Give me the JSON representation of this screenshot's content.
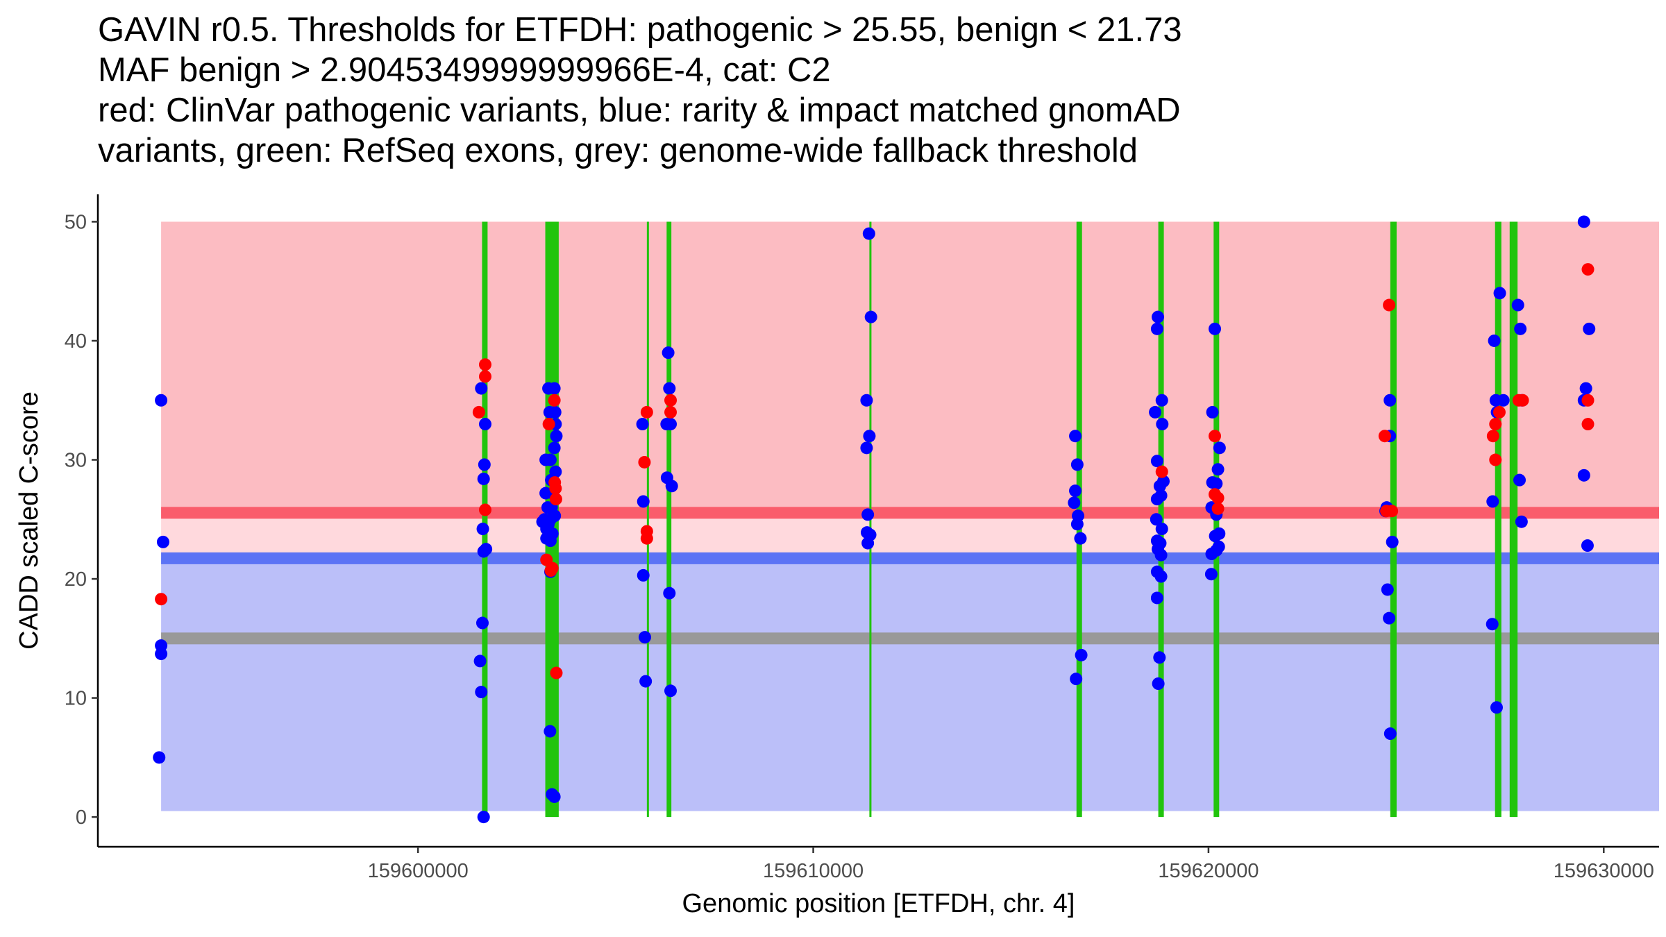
{
  "chart_data": {
    "type": "scatter",
    "title_lines": [
      "GAVIN r0.5. Thresholds for ETFDH: pathogenic > 25.55, benign < 21.73",
      "MAF benign > 2.9045349999999966E-4, cat: C2",
      "red: ClinVar pathogenic variants, blue: rarity & impact matched gnomAD",
      "variants, green: RefSeq exons, grey: genome-wide fallback threshold"
    ],
    "xlabel": "Genomic position [ETFDH, chr. 4]",
    "ylabel": "CADD scaled C-score",
    "xlim": [
      159591900,
      159631400
    ],
    "ylim": [
      -2.5,
      52.3
    ],
    "x_ticks": [
      159600000,
      159610000,
      159620000,
      159630000
    ],
    "x_tick_labels": [
      "159600000",
      "159610000",
      "159620000",
      "159630000"
    ],
    "y_ticks": [
      0,
      10,
      20,
      30,
      40,
      50
    ],
    "y_tick_labels": [
      "0",
      "10",
      "20",
      "30",
      "40",
      "50"
    ],
    "gene_start": 159593500,
    "gene_end": 159631400,
    "thresholds": {
      "pathogenic": 25.55,
      "benign": 21.73,
      "genome_wide_fallback": 15.0
    },
    "regions": [
      {
        "name": "pathogenic region",
        "ymin": 25.55,
        "ymax": 50,
        "color": "#fcbcc2"
      },
      {
        "name": "intermediate region",
        "ymin": 21.73,
        "ymax": 25.55,
        "color": "#ffd9dd"
      },
      {
        "name": "benign region",
        "ymin": 0.5,
        "ymax": 21.73,
        "color": "#bbbff9"
      }
    ],
    "colors": {
      "pathogenic_line": "#fa5c6b",
      "benign_line": "#5c73f5",
      "fallback_line": "#999999",
      "exon": "#21c40d",
      "pathogenic_variant": "#ff0000",
      "gnomad_variant": "#0000ff"
    },
    "exons": [
      {
        "start": 159601620,
        "end": 159601760
      },
      {
        "start": 159603220,
        "end": 159603560
      },
      {
        "start": 159605790,
        "end": 159605840
      },
      {
        "start": 159606290,
        "end": 159606410
      },
      {
        "start": 159611420,
        "end": 159611470
      },
      {
        "start": 159616660,
        "end": 159616800
      },
      {
        "start": 159618730,
        "end": 159618870
      },
      {
        "start": 159620130,
        "end": 159620270
      },
      {
        "start": 159624600,
        "end": 159624760
      },
      {
        "start": 159627250,
        "end": 159627410
      },
      {
        "start": 159627620,
        "end": 159627820
      }
    ],
    "series": [
      {
        "name": "ClinVar pathogenic variants",
        "color": "#ff0000",
        "points": [
          [
            159593500,
            18.3
          ],
          [
            159601540,
            34
          ],
          [
            159601700,
            38
          ],
          [
            159601700,
            37
          ],
          [
            159601700,
            25.8
          ],
          [
            159603250,
            21.6
          ],
          [
            159603310,
            33
          ],
          [
            159603360,
            20.7
          ],
          [
            159603400,
            20.9
          ],
          [
            159603450,
            35
          ],
          [
            159603460,
            28.1
          ],
          [
            159603480,
            27.6
          ],
          [
            159603490,
            26.7
          ],
          [
            159603500,
            12.1
          ],
          [
            159605730,
            29.8
          ],
          [
            159605790,
            34
          ],
          [
            159605790,
            24
          ],
          [
            159605790,
            23.4
          ],
          [
            159606390,
            35
          ],
          [
            159606390,
            34
          ],
          [
            159620160,
            32
          ],
          [
            159620160,
            27.1
          ],
          [
            159620240,
            26.8
          ],
          [
            159620240,
            25.9
          ],
          [
            159618820,
            29
          ],
          [
            159624460,
            32
          ],
          [
            159624500,
            25.7
          ],
          [
            159624570,
            43
          ],
          [
            159624640,
            25.7
          ],
          [
            159627200,
            32
          ],
          [
            159627260,
            30
          ],
          [
            159627260,
            33
          ],
          [
            159627360,
            34
          ],
          [
            159627850,
            35
          ],
          [
            159627950,
            35
          ],
          [
            159629600,
            46
          ],
          [
            159629600,
            35
          ],
          [
            159629600,
            33
          ]
        ]
      },
      {
        "name": "rarity & impact matched gnomAD variants",
        "color": "#0000ff",
        "points": [
          [
            159593500,
            35
          ],
          [
            159593550,
            23.1
          ],
          [
            159593500,
            14.4
          ],
          [
            159593500,
            13.7
          ],
          [
            159593450,
            5
          ],
          [
            159601600,
            36
          ],
          [
            159601700,
            33
          ],
          [
            159601680,
            29.6
          ],
          [
            159601660,
            28.4
          ],
          [
            159601640,
            24.2
          ],
          [
            159601720,
            22.5
          ],
          [
            159601660,
            22.3
          ],
          [
            159601630,
            16.3
          ],
          [
            159601570,
            13.1
          ],
          [
            159601600,
            10.5
          ],
          [
            159601660,
            0
          ],
          [
            159603300,
            36
          ],
          [
            159603450,
            36
          ],
          [
            159603330,
            34
          ],
          [
            159603470,
            34
          ],
          [
            159603480,
            33
          ],
          [
            159603500,
            32
          ],
          [
            159603450,
            31
          ],
          [
            159603230,
            30
          ],
          [
            159603350,
            30
          ],
          [
            159603480,
            29
          ],
          [
            159603370,
            28.3
          ],
          [
            159603230,
            27.2
          ],
          [
            159603400,
            27.2
          ],
          [
            159603280,
            26
          ],
          [
            159603380,
            26
          ],
          [
            159603460,
            25.3
          ],
          [
            159603200,
            25
          ],
          [
            159603350,
            25
          ],
          [
            159603150,
            24.8
          ],
          [
            159603300,
            24.6
          ],
          [
            159603250,
            24.2
          ],
          [
            159603400,
            23.8
          ],
          [
            159603250,
            23.4
          ],
          [
            159603350,
            23.2
          ],
          [
            159603350,
            20.6
          ],
          [
            159603340,
            7.2
          ],
          [
            159603390,
            1.9
          ],
          [
            159603450,
            1.7
          ],
          [
            159605680,
            33
          ],
          [
            159605700,
            26.5
          ],
          [
            159605700,
            20.3
          ],
          [
            159605740,
            15.1
          ],
          [
            159605760,
            11.4
          ],
          [
            159606330,
            39
          ],
          [
            159606360,
            36
          ],
          [
            159606290,
            33
          ],
          [
            159606390,
            33
          ],
          [
            159606300,
            28.5
          ],
          [
            159606420,
            27.8
          ],
          [
            159606360,
            18.8
          ],
          [
            159606390,
            10.6
          ],
          [
            159611410,
            49
          ],
          [
            159611460,
            42
          ],
          [
            159611350,
            35
          ],
          [
            159611420,
            32
          ],
          [
            159611350,
            31
          ],
          [
            159611380,
            25.4
          ],
          [
            159611360,
            23.9
          ],
          [
            159611440,
            23.7
          ],
          [
            159611380,
            23
          ],
          [
            159616630,
            32
          ],
          [
            159616680,
            29.6
          ],
          [
            159616630,
            27.4
          ],
          [
            159616600,
            26.4
          ],
          [
            159616700,
            25.3
          ],
          [
            159616680,
            24.6
          ],
          [
            159616760,
            23.4
          ],
          [
            159616780,
            13.6
          ],
          [
            159616650,
            11.6
          ],
          [
            159618720,
            42
          ],
          [
            159618700,
            41
          ],
          [
            159618820,
            35
          ],
          [
            159618650,
            34
          ],
          [
            159618830,
            33
          ],
          [
            159618700,
            29.9
          ],
          [
            159618860,
            28.2
          ],
          [
            159618770,
            27.8
          ],
          [
            159618800,
            27
          ],
          [
            159618700,
            26.7
          ],
          [
            159618680,
            25
          ],
          [
            159618820,
            24.2
          ],
          [
            159618700,
            23.2
          ],
          [
            159618780,
            23
          ],
          [
            159618720,
            22.5
          ],
          [
            159618800,
            22
          ],
          [
            159618700,
            20.6
          ],
          [
            159618800,
            20.2
          ],
          [
            159618700,
            18.4
          ],
          [
            159618760,
            13.4
          ],
          [
            159618730,
            11.2
          ],
          [
            159620160,
            41
          ],
          [
            159620100,
            34
          ],
          [
            159620280,
            31
          ],
          [
            159620240,
            29.2
          ],
          [
            159620100,
            28.1
          ],
          [
            159620200,
            28
          ],
          [
            159620080,
            26
          ],
          [
            159620200,
            25.4
          ],
          [
            159620270,
            23.8
          ],
          [
            159620170,
            23.6
          ],
          [
            159620260,
            22.7
          ],
          [
            159620200,
            22.4
          ],
          [
            159620080,
            22.1
          ],
          [
            159620070,
            20.4
          ],
          [
            159624590,
            35
          ],
          [
            159624590,
            32
          ],
          [
            159624510,
            26
          ],
          [
            159624480,
            25.7
          ],
          [
            159624650,
            23.1
          ],
          [
            159624530,
            19.1
          ],
          [
            159624570,
            16.7
          ],
          [
            159624600,
            7
          ],
          [
            159627230,
            40
          ],
          [
            159627370,
            44
          ],
          [
            159627270,
            35
          ],
          [
            159627460,
            35
          ],
          [
            159627300,
            34
          ],
          [
            159627190,
            26.5
          ],
          [
            159627180,
            16.2
          ],
          [
            159627290,
            9.2
          ],
          [
            159627830,
            43
          ],
          [
            159627890,
            41
          ],
          [
            159627930,
            35
          ],
          [
            159627870,
            28.3
          ],
          [
            159627920,
            24.8
          ],
          [
            159629500,
            50
          ],
          [
            159629630,
            41
          ],
          [
            159629550,
            36
          ],
          [
            159629500,
            35
          ],
          [
            159629500,
            28.7
          ],
          [
            159629590,
            22.8
          ]
        ]
      }
    ]
  }
}
